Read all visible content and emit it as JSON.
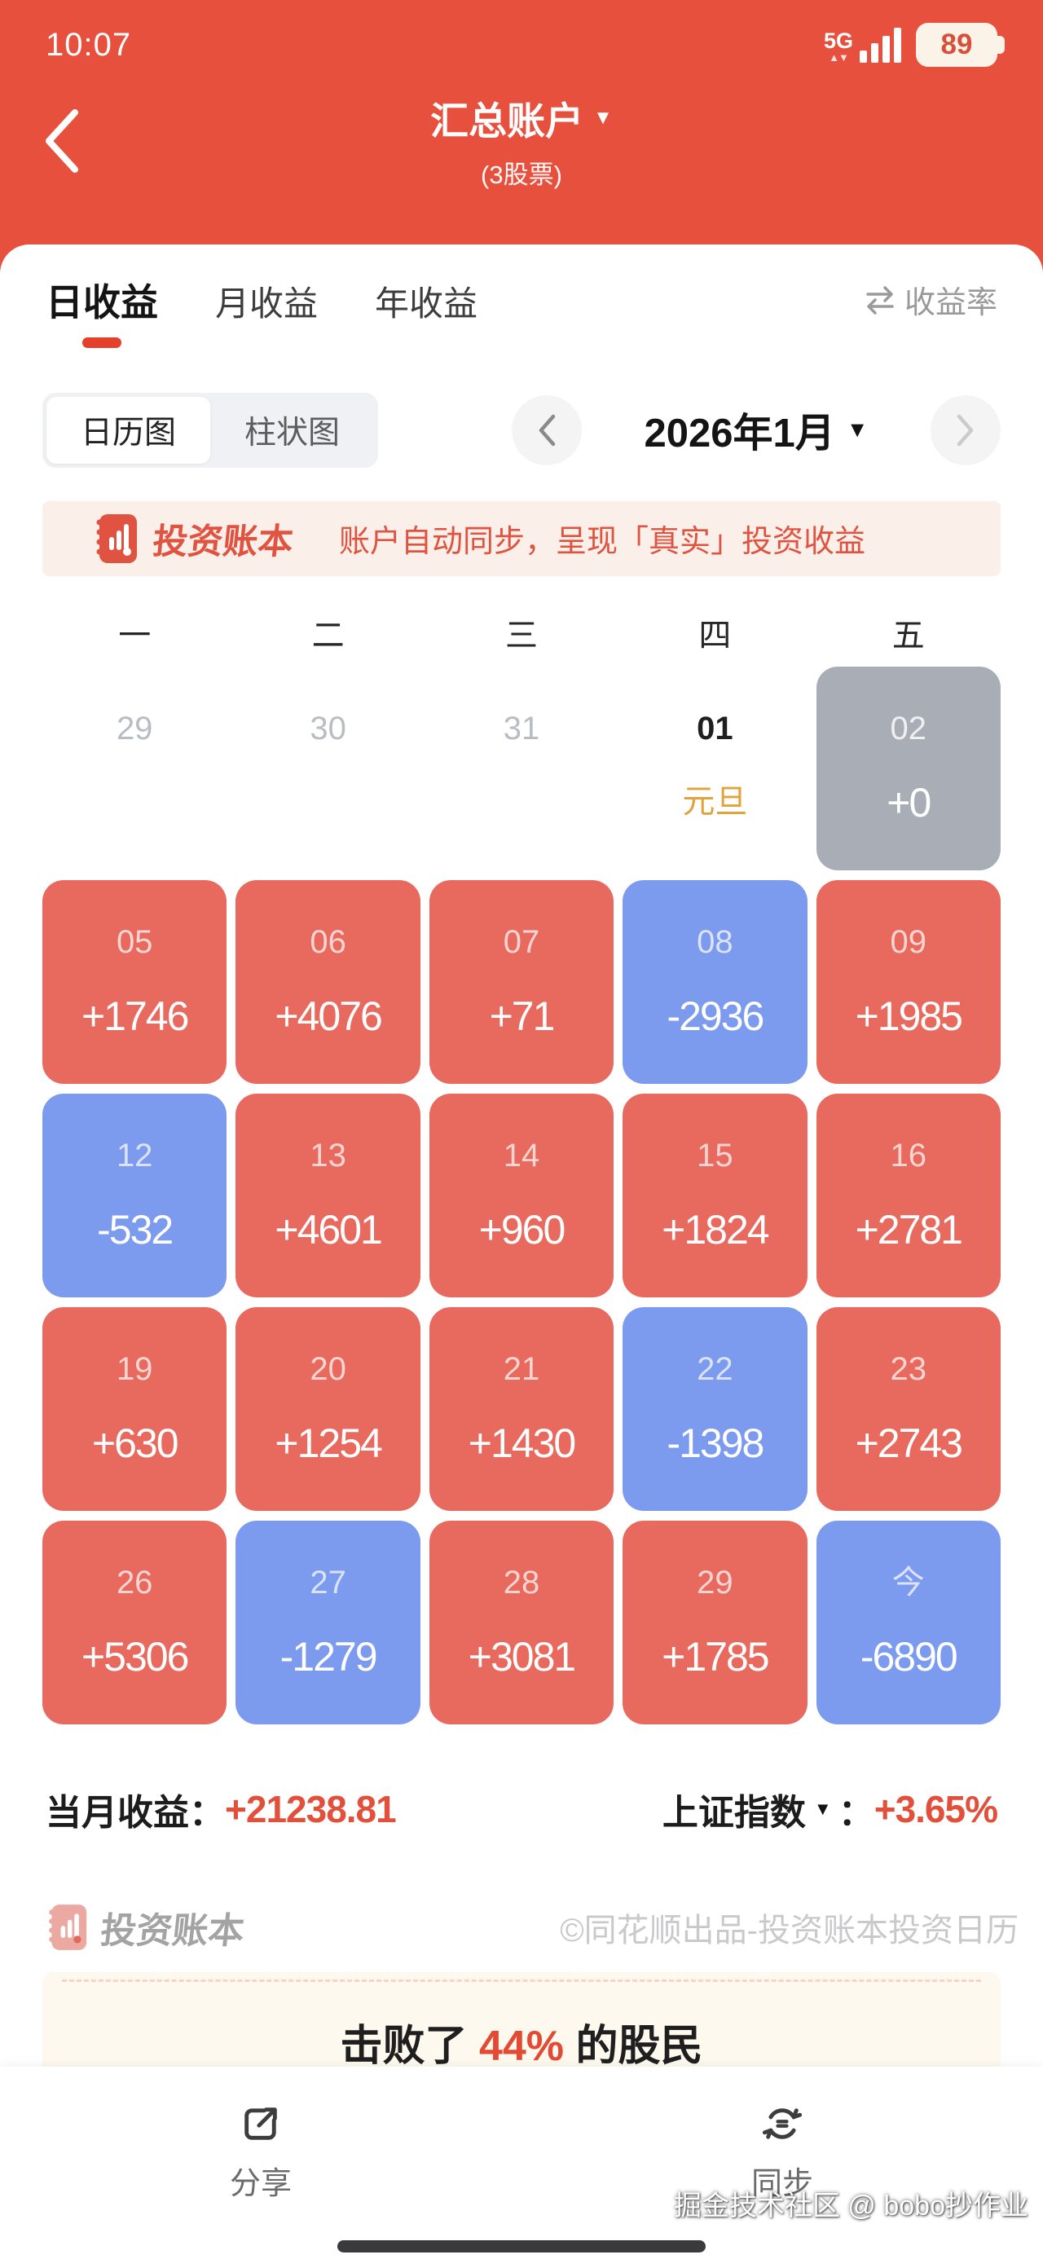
{
  "status_bar": {
    "time": "10:07",
    "network": "5G",
    "battery": "89"
  },
  "header": {
    "title": "汇总账户",
    "subtitle": "(3股票)"
  },
  "tabs": [
    {
      "label": "日收益",
      "active": true
    },
    {
      "label": "月收益",
      "active": false
    },
    {
      "label": "年收益",
      "active": false
    }
  ],
  "rate_switch": {
    "label": "收益率"
  },
  "view_toggle": [
    {
      "label": "日历图",
      "active": true
    },
    {
      "label": "柱状图",
      "active": false
    }
  ],
  "month_nav": {
    "label": "2026年1月"
  },
  "promo_banner": {
    "brand": "投资账本",
    "message": "账户自动同步，呈现「真实」投资收益"
  },
  "calendar": {
    "weekdays": [
      "一",
      "二",
      "三",
      "四",
      "五"
    ],
    "rows": [
      [
        {
          "day": "29",
          "type": "muted"
        },
        {
          "day": "30",
          "type": "muted"
        },
        {
          "day": "31",
          "type": "muted"
        },
        {
          "day": "01",
          "type": "plain",
          "holiday": "元旦"
        },
        {
          "day": "02",
          "type": "flat",
          "value": "+0"
        }
      ],
      [
        {
          "day": "05",
          "type": "gain",
          "value": "+1746"
        },
        {
          "day": "06",
          "type": "gain",
          "value": "+4076"
        },
        {
          "day": "07",
          "type": "gain",
          "value": "+71"
        },
        {
          "day": "08",
          "type": "loss",
          "value": "-2936"
        },
        {
          "day": "09",
          "type": "gain",
          "value": "+1985"
        }
      ],
      [
        {
          "day": "12",
          "type": "loss",
          "value": "-532"
        },
        {
          "day": "13",
          "type": "gain",
          "value": "+4601"
        },
        {
          "day": "14",
          "type": "gain",
          "value": "+960"
        },
        {
          "day": "15",
          "type": "gain",
          "value": "+1824"
        },
        {
          "day": "16",
          "type": "gain",
          "value": "+2781"
        }
      ],
      [
        {
          "day": "19",
          "type": "gain",
          "value": "+630"
        },
        {
          "day": "20",
          "type": "gain",
          "value": "+1254"
        },
        {
          "day": "21",
          "type": "gain",
          "value": "+1430"
        },
        {
          "day": "22",
          "type": "loss",
          "value": "-1398"
        },
        {
          "day": "23",
          "type": "gain",
          "value": "+2743"
        }
      ],
      [
        {
          "day": "26",
          "type": "gain",
          "value": "+5306"
        },
        {
          "day": "27",
          "type": "loss",
          "value": "-1279"
        },
        {
          "day": "28",
          "type": "gain",
          "value": "+3081"
        },
        {
          "day": "29",
          "type": "gain",
          "value": "+1785"
        },
        {
          "day": "今",
          "type": "loss",
          "value": "-6890"
        }
      ]
    ]
  },
  "summary": {
    "month_label": "当月收益：",
    "month_value": "+21238.81",
    "index_label": "上证指数",
    "index_colon": "：",
    "index_value": "+3.65%"
  },
  "watermark": {
    "brand": "投资账本",
    "credit": "©同花顺出品-投资账本投资日历"
  },
  "beat_banner": {
    "prefix": "击败了 ",
    "percent": "44%",
    "suffix": " 的股民"
  },
  "bottom_bar": [
    {
      "label": "分享"
    },
    {
      "label": "同步"
    }
  ],
  "site_watermark": "掘金技术社区 @ bobo抄作业",
  "colors": {
    "header_red": "#E8503E",
    "gain_red": "#E8695E",
    "loss_blue": "#7C9AEE",
    "flat_gray": "#A9AEB6",
    "holiday_orange": "#E2A23C",
    "accent_red": "#E5402C",
    "value_red": "#E2503C",
    "promo_red": "#DF5340",
    "promo_bg": "#FBEFEA",
    "beat_bg": "#FEF9EE"
  }
}
